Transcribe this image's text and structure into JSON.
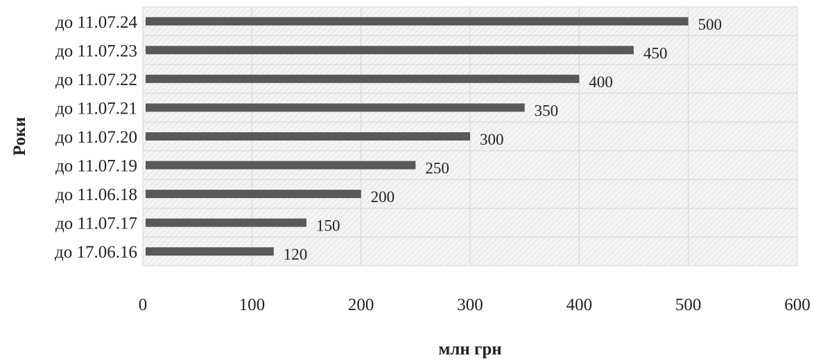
{
  "chart_data": {
    "type": "bar",
    "orientation": "horizontal",
    "categories": [
      "до 11.07.24",
      "до 11.07.23",
      "до 11.07.22",
      "до 11.07.21",
      "до 11.07.20",
      "до 11.07.19",
      "до 11.06.18",
      "до 11.07.17",
      "до 17.06.16"
    ],
    "values": [
      500,
      450,
      400,
      350,
      300,
      250,
      200,
      150,
      120
    ],
    "data_labels": [
      "500",
      "450",
      "400",
      "350",
      "300",
      "250",
      "200",
      "150",
      "120"
    ],
    "xticks": [
      "0",
      "100",
      "200",
      "300",
      "400",
      "500",
      "600"
    ],
    "xlim": [
      0,
      600
    ],
    "xlabel": "млн грн",
    "ylabel": "Роки",
    "title": "",
    "grid": true,
    "legend": "none",
    "bar_color": "#595959",
    "plot_background": "#f0f0f0"
  }
}
